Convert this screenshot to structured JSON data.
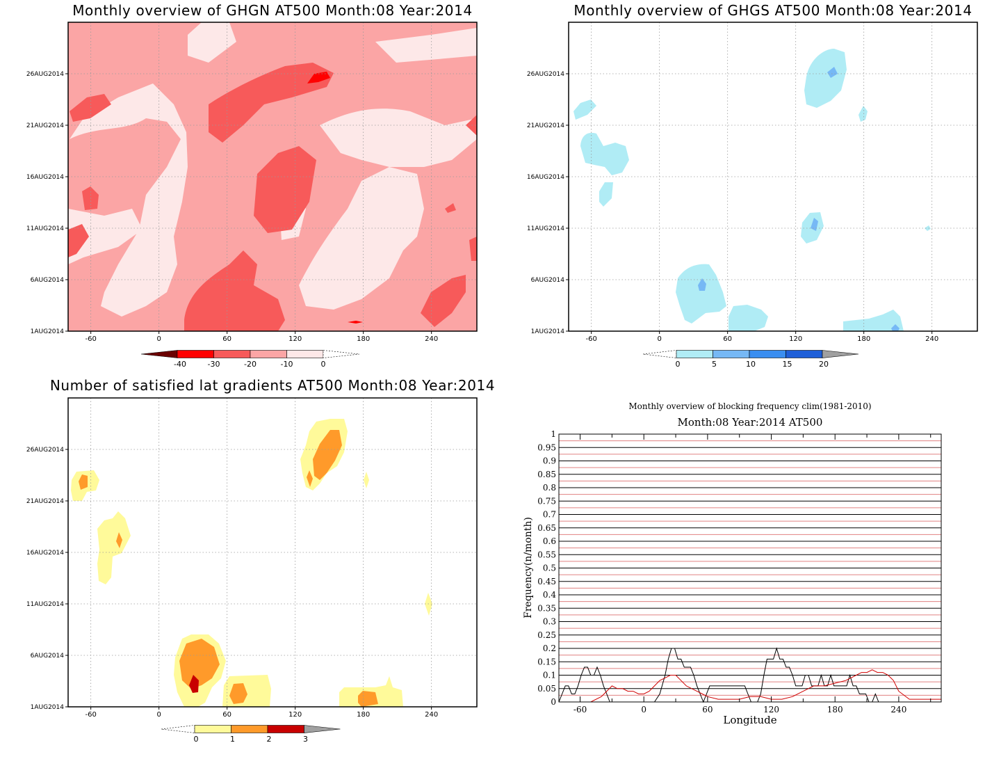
{
  "colors": {
    "ghgn": [
      "#fde8e8",
      "#fba5a5",
      "#f75a5a",
      "#ff0000",
      "#6b0000"
    ],
    "ghgs": [
      "#b0ecf5",
      "#76b8f5",
      "#3a8ef0",
      "#1f5fd8",
      "#a0a0a0"
    ],
    "lat": [
      "#fffa9a",
      "#ff9a2a",
      "#c80000",
      "#a0a0a0"
    ],
    "freq_series_1": "#000000",
    "freq_series_2": "#d00000",
    "grid_red": "#e08080"
  },
  "chart_data": [
    {
      "type": "heatmap",
      "title": "Monthly overview of GHGN AT500 Month:08 Year:2014",
      "x_ticks": [
        "-60",
        "0",
        "60",
        "120",
        "180",
        "240"
      ],
      "y_ticks": [
        "1AUG2014",
        "6AUG2014",
        "11AUG2014",
        "16AUG2014",
        "21AUG2014",
        "26AUG2014"
      ],
      "colorbar_labels": [
        "-40",
        "-30",
        "-20",
        "-10",
        "0"
      ]
    },
    {
      "type": "heatmap",
      "title": "Monthly overview of GHGS AT500 Month:08 Year:2014",
      "x_ticks": [
        "-60",
        "0",
        "60",
        "120",
        "180",
        "240"
      ],
      "y_ticks": [
        "1AUG2014",
        "6AUG2014",
        "11AUG2014",
        "16AUG2014",
        "21AUG2014",
        "26AUG2014"
      ],
      "colorbar_labels": [
        "0",
        "5",
        "10",
        "15",
        "20"
      ]
    },
    {
      "type": "heatmap",
      "title": "Number of satisfied lat gradients AT500 Month:08 Year:2014",
      "x_ticks": [
        "-60",
        "0",
        "60",
        "120",
        "180",
        "240"
      ],
      "y_ticks": [
        "1AUG2014",
        "6AUG2014",
        "11AUG2014",
        "16AUG2014",
        "21AUG2014",
        "26AUG2014"
      ],
      "colorbar_labels": [
        "0",
        "1",
        "2",
        "3"
      ]
    },
    {
      "type": "line",
      "title": "Monthly overview of blocking frequency clim(1981-2010)",
      "subtitle": "Month:08 Year:2014  AT500",
      "xlabel": "Longitude",
      "ylabel": "Frequency(n/month)",
      "xlim": [
        -80,
        280
      ],
      "ylim": [
        0,
        1
      ],
      "x_ticks": [
        "-60",
        "0",
        "60",
        "120",
        "180",
        "240"
      ],
      "y_ticks": [
        "0",
        "0.05",
        "0.1",
        "0.15",
        "0.2",
        "0.25",
        "0.3",
        "0.35",
        "0.4",
        "0.45",
        "0.5",
        "0.55",
        "0.6",
        "0.65",
        "0.7",
        "0.75",
        "0.8",
        "0.85",
        "0.9",
        "0.95",
        "1"
      ],
      "series": [
        {
          "x": [
            -80,
            -77,
            -74,
            -71,
            -68,
            -65,
            -62,
            -59,
            -56,
            -53,
            -50,
            -47,
            -44,
            -41,
            -38,
            -35,
            -32,
            -29,
            -26,
            -23,
            -20,
            -10,
            0,
            10,
            15,
            20,
            23,
            26,
            29,
            32,
            35,
            38,
            41,
            44,
            47,
            50,
            53,
            56,
            59,
            62,
            65,
            80,
            95,
            98,
            101,
            104,
            107,
            110,
            113,
            116,
            119,
            122,
            125,
            128,
            131,
            134,
            137,
            140,
            143,
            146,
            149,
            152,
            155,
            158,
            161,
            164,
            167,
            170,
            173,
            176,
            179,
            182,
            185,
            188,
            191,
            194,
            197,
            200,
            203,
            206,
            209,
            212,
            215,
            218,
            221,
            224,
            227,
            230,
            233,
            236,
            239,
            242,
            245,
            250,
            260,
            270,
            280
          ],
          "y": [
            0,
            0.03,
            0.06,
            0.06,
            0.03,
            0.03,
            0.06,
            0.1,
            0.13,
            0.13,
            0.1,
            0.1,
            0.13,
            0.1,
            0.06,
            0.03,
            0,
            0,
            0,
            0,
            0,
            0,
            0,
            0,
            0.03,
            0.1,
            0.16,
            0.2,
            0.2,
            0.16,
            0.16,
            0.13,
            0.13,
            0.13,
            0.1,
            0.06,
            0.03,
            0,
            0.03,
            0.06,
            0.06,
            0.06,
            0.06,
            0.03,
            0,
            0,
            0,
            0.03,
            0.1,
            0.16,
            0.16,
            0.16,
            0.2,
            0.16,
            0.16,
            0.13,
            0.13,
            0.1,
            0.06,
            0.06,
            0.06,
            0.1,
            0.1,
            0.06,
            0.06,
            0.06,
            0.1,
            0.06,
            0.06,
            0.1,
            0.06,
            0.06,
            0.06,
            0.06,
            0.06,
            0.1,
            0.06,
            0.06,
            0.03,
            0.03,
            0.03,
            0,
            0,
            0.03,
            0,
            0,
            0,
            0,
            0,
            0,
            0,
            0,
            0,
            0,
            0,
            0,
            0
          ]
        },
        {
          "x": [
            -80,
            -60,
            -50,
            -40,
            -35,
            -30,
            -25,
            -20,
            -15,
            -10,
            -5,
            0,
            5,
            10,
            15,
            20,
            25,
            30,
            35,
            40,
            45,
            50,
            55,
            60,
            70,
            80,
            90,
            100,
            110,
            120,
            130,
            140,
            150,
            160,
            170,
            180,
            190,
            195,
            200,
            205,
            210,
            215,
            220,
            225,
            230,
            235,
            240,
            250,
            260,
            270,
            280
          ],
          "y": [
            0,
            0,
            0,
            0.02,
            0.04,
            0.06,
            0.05,
            0.05,
            0.04,
            0.04,
            0.03,
            0.03,
            0.04,
            0.06,
            0.08,
            0.09,
            0.1,
            0.1,
            0.08,
            0.06,
            0.05,
            0.04,
            0.03,
            0.02,
            0.01,
            0.01,
            0.01,
            0.02,
            0.02,
            0.01,
            0.01,
            0.02,
            0.04,
            0.06,
            0.06,
            0.07,
            0.08,
            0.09,
            0.1,
            0.11,
            0.11,
            0.12,
            0.11,
            0.11,
            0.1,
            0.08,
            0.04,
            0.01,
            0.01,
            0.01,
            0.01
          ]
        }
      ]
    }
  ]
}
